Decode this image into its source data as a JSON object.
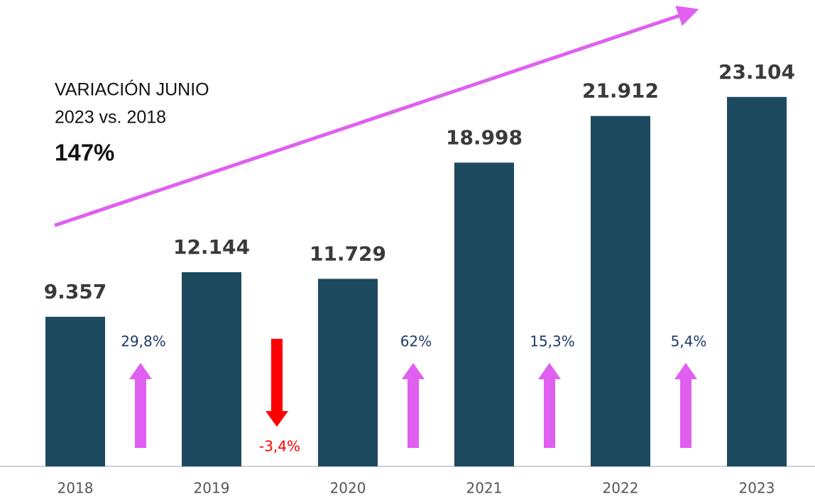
{
  "chart_data": {
    "type": "bar",
    "categories": [
      "2018",
      "2019",
      "2020",
      "2021",
      "2022",
      "2023"
    ],
    "values": [
      9357,
      12144,
      11729,
      18998,
      21912,
      23104
    ],
    "value_labels": [
      "9.357",
      "12.144",
      "11.729",
      "18.998",
      "21.912",
      "23.104"
    ],
    "color": "#1d4a5e",
    "ylim": [
      0,
      25000
    ],
    "changes": {
      "values": [
        29.8,
        -3.4,
        62,
        15.3,
        5.4
      ],
      "value_labels": [
        "29,8%",
        "-3,4%",
        "62%",
        "15,3%",
        "5,4%"
      ],
      "up_color": "#e05ff0",
      "down_color": "#ff0000"
    },
    "annotation": {
      "lines": [
        "VARIACIÓN JUNIO",
        "2023 vs. 2018"
      ],
      "value": "147%",
      "arrow_color": "#e05ff0"
    }
  }
}
